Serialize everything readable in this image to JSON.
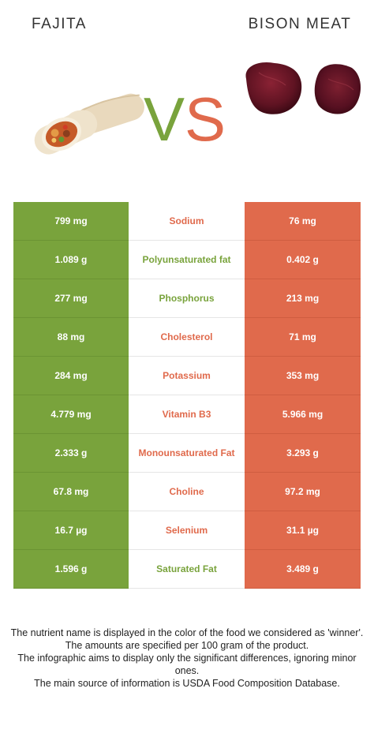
{
  "header": {
    "left_title": "FAJITA",
    "right_title": "BISON MEAT",
    "vs_label": "VS"
  },
  "colors": {
    "left_winner": "#79a33c",
    "right_winner": "#e06a4c"
  },
  "rows": [
    {
      "left": "799 mg",
      "nutrient": "Sodium",
      "right": "76 mg",
      "winner": "right"
    },
    {
      "left": "1.089 g",
      "nutrient": "Polyunsaturated fat",
      "right": "0.402 g",
      "winner": "left"
    },
    {
      "left": "277 mg",
      "nutrient": "Phosphorus",
      "right": "213 mg",
      "winner": "left"
    },
    {
      "left": "88 mg",
      "nutrient": "Cholesterol",
      "right": "71 mg",
      "winner": "right"
    },
    {
      "left": "284 mg",
      "nutrient": "Potassium",
      "right": "353 mg",
      "winner": "right"
    },
    {
      "left": "4.779 mg",
      "nutrient": "Vitamin B3",
      "right": "5.966 mg",
      "winner": "right"
    },
    {
      "left": "2.333 g",
      "nutrient": "Monounsaturated Fat",
      "right": "3.293 g",
      "winner": "right"
    },
    {
      "left": "67.8 mg",
      "nutrient": "Choline",
      "right": "97.2 mg",
      "winner": "right"
    },
    {
      "left": "16.7 µg",
      "nutrient": "Selenium",
      "right": "31.1 µg",
      "winner": "right"
    },
    {
      "left": "1.596 g",
      "nutrient": "Saturated Fat",
      "right": "3.489 g",
      "winner": "left"
    }
  ],
  "footnote": {
    "line1": "The nutrient name is displayed in the color of the food we considered as 'winner'.",
    "line2": "The amounts are specified per 100 gram of the product.",
    "line3": "The infographic aims to display only the significant differences, ignoring minor ones.",
    "line4": "The main source of information is USDA Food Composition Database."
  }
}
